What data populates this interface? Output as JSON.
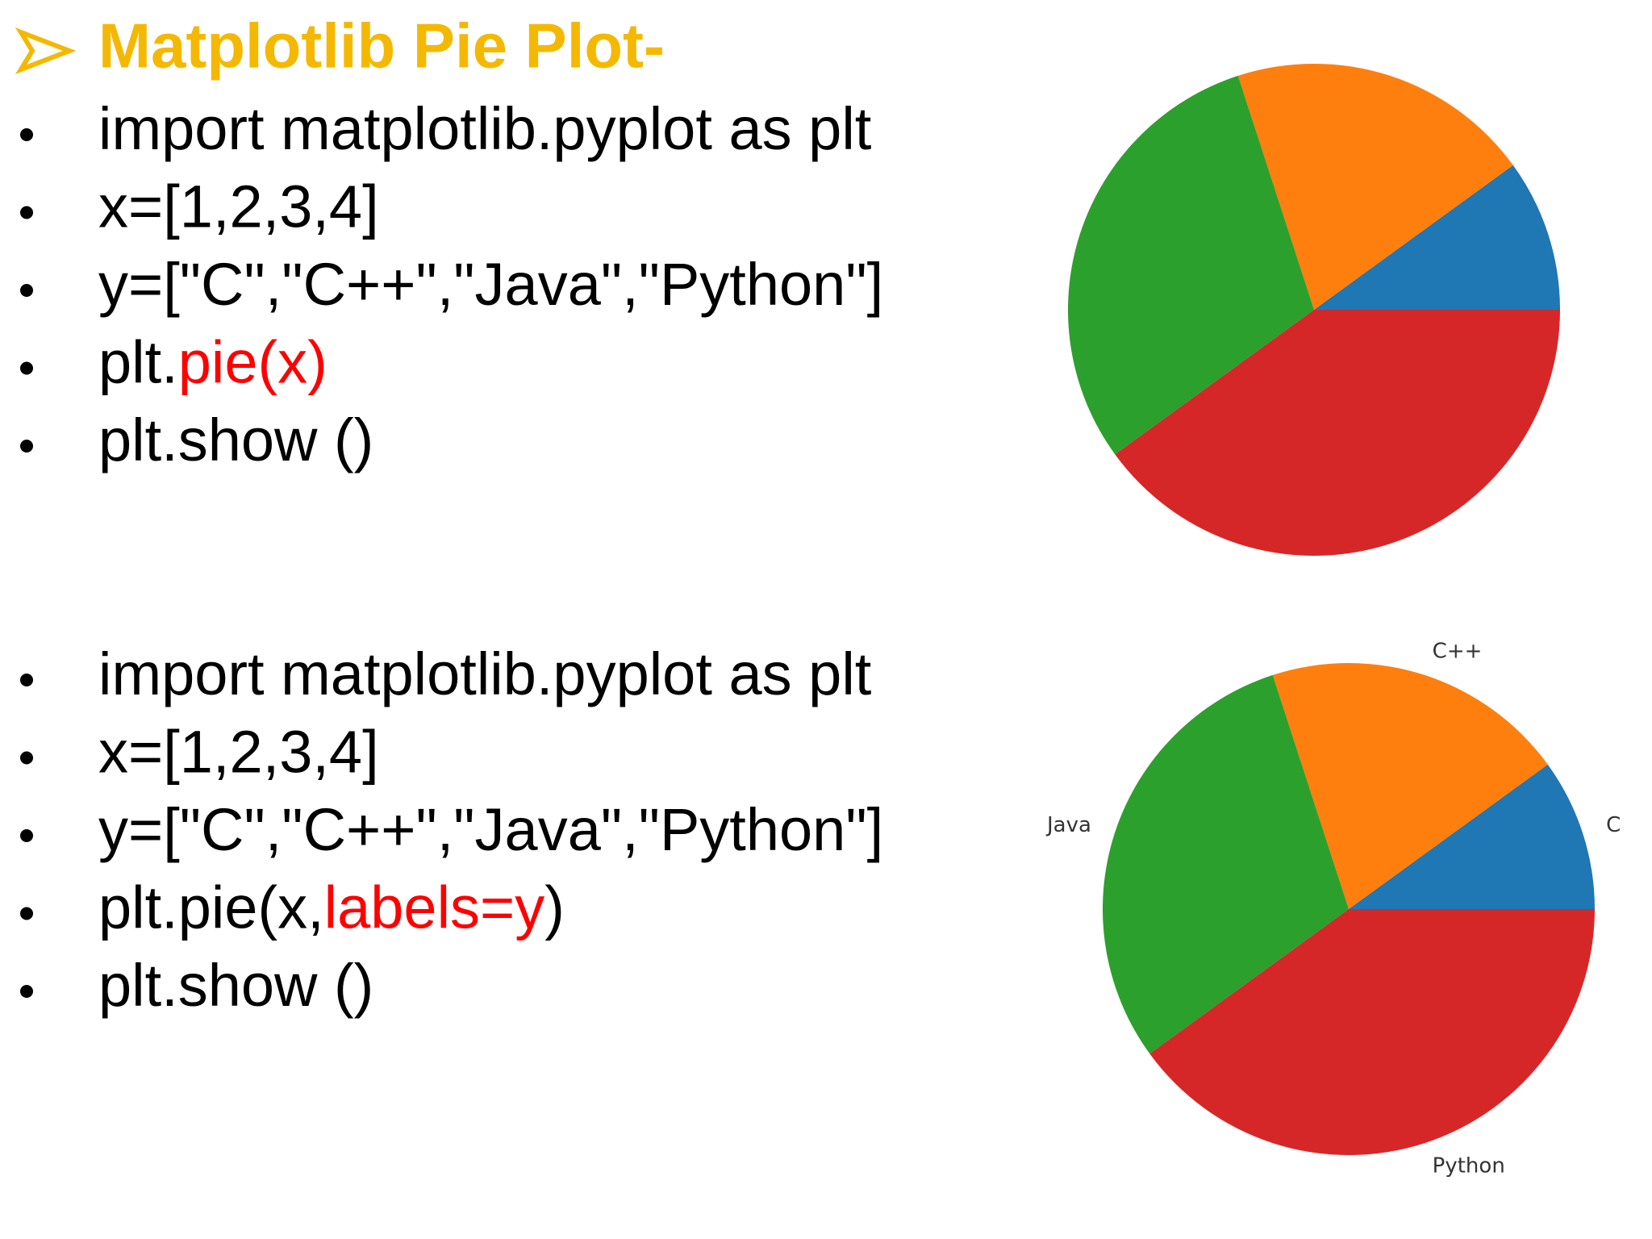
{
  "slide": {
    "title": "Matplotlib Pie Plot-",
    "title_color": "#f5b800",
    "blocks": [
      {
        "lines": [
          [
            {
              "text": "import matplotlib.pyplot as plt"
            }
          ],
          [
            {
              "text": "x=[1,2,3,4]"
            }
          ],
          [
            {
              "text": "y=[\"C\",\"C++\",\"Java\",\"Python\"]"
            }
          ],
          [
            {
              "text": "plt."
            },
            {
              "text": "pie(x)",
              "color": "#ff0000"
            }
          ],
          [
            {
              "text": "plt.show ()"
            }
          ]
        ]
      },
      {
        "lines": [
          [
            {
              "text": "import matplotlib.pyplot as plt"
            }
          ],
          [
            {
              "text": "x=[1,2,3,4]"
            }
          ],
          [
            {
              "text": "y=[\"C\",\"C++\",\"Java\",\"Python\"]"
            }
          ],
          [
            {
              "text": "plt.pie(x,"
            },
            {
              "text": "labels=y",
              "color": "#ff0000"
            },
            {
              "text": ")"
            }
          ],
          [
            {
              "text": "plt.show ()"
            }
          ]
        ]
      }
    ]
  },
  "chart_data": [
    {
      "type": "pie",
      "values": [
        1,
        2,
        3,
        4
      ],
      "colors": [
        "#1f77b4",
        "#ff7f0e",
        "#2ca02c",
        "#d62728"
      ]
    },
    {
      "type": "pie",
      "labels": [
        "C",
        "C++",
        "Java",
        "Python"
      ],
      "values": [
        1,
        2,
        3,
        4
      ],
      "colors": [
        "#1f77b4",
        "#ff7f0e",
        "#2ca02c",
        "#d62728"
      ]
    }
  ]
}
